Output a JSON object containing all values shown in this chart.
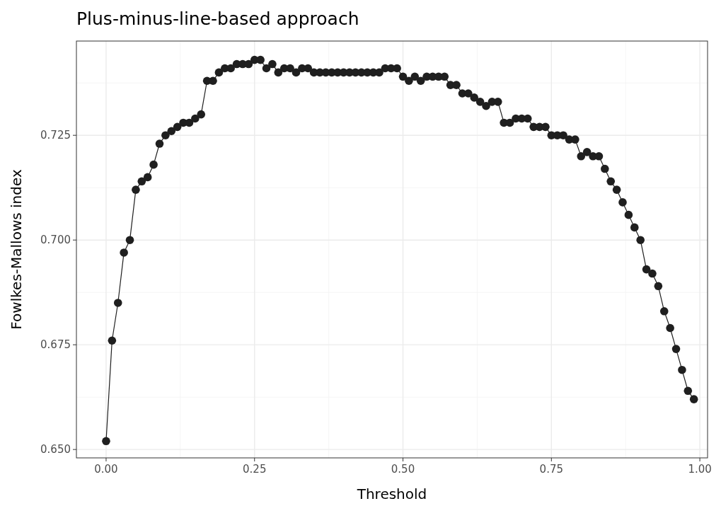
{
  "chart_data": {
    "type": "line",
    "title": "Plus-minus-line-based approach",
    "xlabel": "Threshold",
    "ylabel": "Fowlkes-Mallows index",
    "x": [
      0,
      0.01,
      0.02,
      0.03,
      0.04,
      0.05,
      0.06,
      0.07,
      0.08,
      0.09,
      0.1,
      0.11,
      0.12,
      0.13,
      0.14,
      0.15,
      0.16,
      0.17,
      0.18,
      0.19,
      0.2,
      0.21,
      0.22,
      0.23,
      0.24,
      0.25,
      0.26,
      0.27,
      0.28,
      0.29,
      0.3,
      0.31,
      0.32,
      0.33,
      0.34,
      0.35,
      0.36,
      0.37,
      0.38,
      0.39,
      0.4,
      0.41,
      0.42,
      0.43,
      0.44,
      0.45,
      0.46,
      0.47,
      0.48,
      0.49,
      0.5,
      0.51,
      0.52,
      0.53,
      0.54,
      0.55,
      0.56,
      0.57,
      0.58,
      0.59,
      0.6,
      0.61,
      0.62,
      0.63,
      0.64,
      0.65,
      0.66,
      0.67,
      0.68,
      0.69,
      0.7,
      0.71,
      0.72,
      0.73,
      0.74,
      0.75,
      0.76,
      0.77,
      0.78,
      0.79,
      0.8,
      0.81,
      0.82,
      0.83,
      0.84,
      0.85,
      0.86,
      0.87,
      0.88,
      0.89,
      0.9,
      0.91,
      0.92,
      0.93,
      0.94,
      0.95,
      0.96,
      0.97,
      0.98,
      0.99
    ],
    "series": [
      {
        "color": "#1f1f1f",
        "values": [
          0.652,
          0.676,
          0.685,
          0.697,
          0.7,
          0.712,
          0.714,
          0.715,
          0.718,
          0.723,
          0.725,
          0.726,
          0.727,
          0.728,
          0.728,
          0.729,
          0.73,
          0.738,
          0.738,
          0.74,
          0.741,
          0.741,
          0.742,
          0.742,
          0.742,
          0.743,
          0.743,
          0.741,
          0.742,
          0.74,
          0.741,
          0.741,
          0.74,
          0.741,
          0.741,
          0.74,
          0.74,
          0.74,
          0.74,
          0.74,
          0.74,
          0.74,
          0.74,
          0.74,
          0.74,
          0.74,
          0.74,
          0.741,
          0.741,
          0.741,
          0.739,
          0.738,
          0.739,
          0.738,
          0.739,
          0.739,
          0.739,
          0.739,
          0.737,
          0.737,
          0.735,
          0.735,
          0.734,
          0.733,
          0.732,
          0.733,
          0.733,
          0.728,
          0.728,
          0.729,
          0.729,
          0.729,
          0.727,
          0.727,
          0.727,
          0.725,
          0.725,
          0.725,
          0.724,
          0.724,
          0.72,
          0.721,
          0.72,
          0.72,
          0.717,
          0.714,
          0.712,
          0.709,
          0.706,
          0.703,
          0.7,
          0.693,
          0.692,
          0.689,
          0.683,
          0.679,
          0.674,
          0.669,
          0.664,
          0.662
        ]
      }
    ],
    "xlim": [
      -0.05,
      1.013
    ],
    "ylim": [
      0.648,
      0.7475
    ],
    "xticks": [
      {
        "value": 0,
        "label": "0.00"
      },
      {
        "value": 0.25,
        "label": "0.25"
      },
      {
        "value": 0.5,
        "label": "0.50"
      },
      {
        "value": 0.75,
        "label": "0.75"
      },
      {
        "value": 1,
        "label": "1.00"
      }
    ],
    "yticks": [
      {
        "value": 0.65,
        "label": "0.650"
      },
      {
        "value": 0.675,
        "label": "0.675"
      },
      {
        "value": 0.7,
        "label": "0.700"
      },
      {
        "value": 0.725,
        "label": "0.725"
      }
    ],
    "grid": true,
    "marker": "circle",
    "line_style": "solid"
  }
}
